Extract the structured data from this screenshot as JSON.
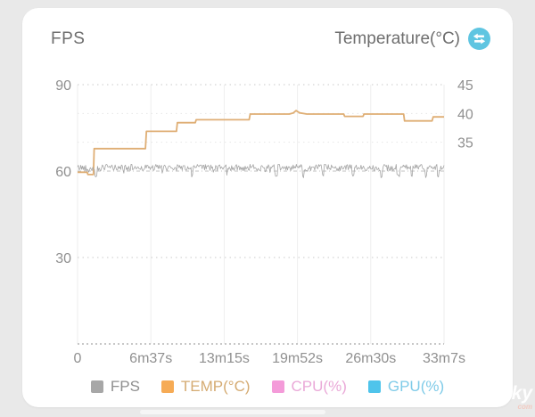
{
  "page": {
    "background_color": "#e9e9e9",
    "card_color": "#ffffff"
  },
  "header": {
    "left_title": "FPS",
    "right_title": "Temperature(°C)",
    "swap_icon_color": "#5fc5e1"
  },
  "chart_data": {
    "type": "line",
    "title": "",
    "grid": true,
    "x_axis": {
      "duration_seconds": 1987,
      "tick_labels": [
        "0",
        "6m37s",
        "13m15s",
        "19m52s",
        "26m30s",
        "33m7s"
      ]
    },
    "left_axis": {
      "title": "FPS",
      "range": [
        0,
        90
      ],
      "ticks": [
        90,
        60,
        30
      ],
      "tick_labels": [
        "90",
        "60",
        "30"
      ]
    },
    "right_axis": {
      "title": "Temperature(°C)",
      "range": [
        0,
        45
      ],
      "ticks": [
        45,
        40,
        35
      ],
      "tick_labels": [
        "45",
        "40",
        "35"
      ]
    },
    "series": [
      {
        "id": "fps",
        "name": "FPS",
        "color": "#a5a5a5",
        "style": "noisy-line",
        "base_value": 61.2,
        "noise_amplitude": 1.15,
        "dip_value": 58.2,
        "dips_seconds": [
          100,
          620,
          1078,
          1222,
          1332,
          1497,
          1646,
          1740,
          1812,
          1890,
          1956
        ],
        "sample_count": 460,
        "seed": 42
      },
      {
        "id": "temp",
        "name": "TEMP(°C)",
        "color": "#dfae74",
        "style": "step-line",
        "points": [
          [
            0,
            29.8
          ],
          [
            52,
            29.8
          ],
          [
            56,
            29.4
          ],
          [
            86,
            29.4
          ],
          [
            90,
            33.9
          ],
          [
            368,
            33.9
          ],
          [
            373,
            36.9
          ],
          [
            536,
            36.9
          ],
          [
            541,
            38.4
          ],
          [
            638,
            38.4
          ],
          [
            643,
            38.9
          ],
          [
            930,
            38.9
          ],
          [
            936,
            39.9
          ],
          [
            1148,
            39.9
          ],
          [
            1170,
            40.1
          ],
          [
            1185,
            40.5
          ],
          [
            1205,
            40.1
          ],
          [
            1243,
            39.9
          ],
          [
            1443,
            39.9
          ],
          [
            1448,
            39.5
          ],
          [
            1548,
            39.5
          ],
          [
            1553,
            39.9
          ],
          [
            1768,
            39.9
          ],
          [
            1773,
            38.7
          ],
          [
            1922,
            38.7
          ],
          [
            1928,
            39.4
          ],
          [
            1987,
            39.4
          ]
        ]
      },
      {
        "id": "cpu",
        "name": "CPU(%)",
        "color": "#f29ad6",
        "style": "hidden",
        "points": []
      },
      {
        "id": "gpu",
        "name": "GPU(%)",
        "color": "#4fc4eb",
        "style": "hidden",
        "points": []
      }
    ],
    "legend_position": "bottom"
  },
  "legend": {
    "items": [
      {
        "label": "FPS",
        "color": "#a7a7a7",
        "text_color": "#8f8f8f"
      },
      {
        "label": "TEMP(°C)",
        "color": "#f6ab55",
        "text_color": "#d5ab72"
      },
      {
        "label": "CPU(%)",
        "color": "#f49bd9",
        "text_color": "#eaa9d8"
      },
      {
        "label": "GPU(%)",
        "color": "#4fc4eb",
        "text_color": "#7fcbe8"
      }
    ]
  },
  "watermark": {
    "line1": "ky",
    "line2": "com"
  }
}
